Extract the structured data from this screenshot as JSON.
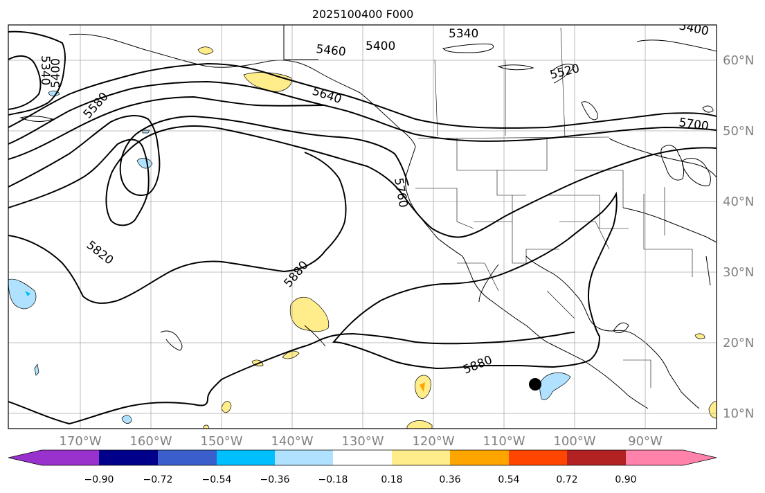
{
  "title": "2025100400 F000",
  "axes": {
    "lon_labels": [
      "170°W",
      "160°W",
      "150°W",
      "140°W",
      "130°W",
      "120°W",
      "110°W",
      "100°W",
      "90°W"
    ],
    "lat_labels": [
      "60°N",
      "50°N",
      "40°N",
      "30°N",
      "20°N",
      "10°N"
    ],
    "label_color": "#808080"
  },
  "contours": {
    "labels": [
      "5340",
      "5340",
      "5400",
      "5400",
      "5400",
      "5460",
      "5520",
      "5580",
      "5640",
      "5700",
      "5760",
      "5820",
      "5880",
      "5880"
    ]
  },
  "colorbar": {
    "ticks": [
      "−0.90",
      "−0.72",
      "−0.54",
      "−0.36",
      "−0.18",
      "0.18",
      "0.36",
      "0.54",
      "0.72",
      "0.90"
    ],
    "colors": [
      "#9932cc",
      "#00008b",
      "#3a5fcd",
      "#00bfff",
      "#b0e2ff",
      "#ffffff",
      "#ffec8b",
      "#ffa500",
      "#ff4500",
      "#b22222",
      "#ff82ab"
    ]
  },
  "colors": {
    "neg_fill": "#b0e2ff",
    "neg_strong": "#00bfff",
    "pos_fill": "#ffec8b",
    "pos_strong": "#ffa500"
  },
  "marker": {
    "symbol": "filled-circle"
  }
}
